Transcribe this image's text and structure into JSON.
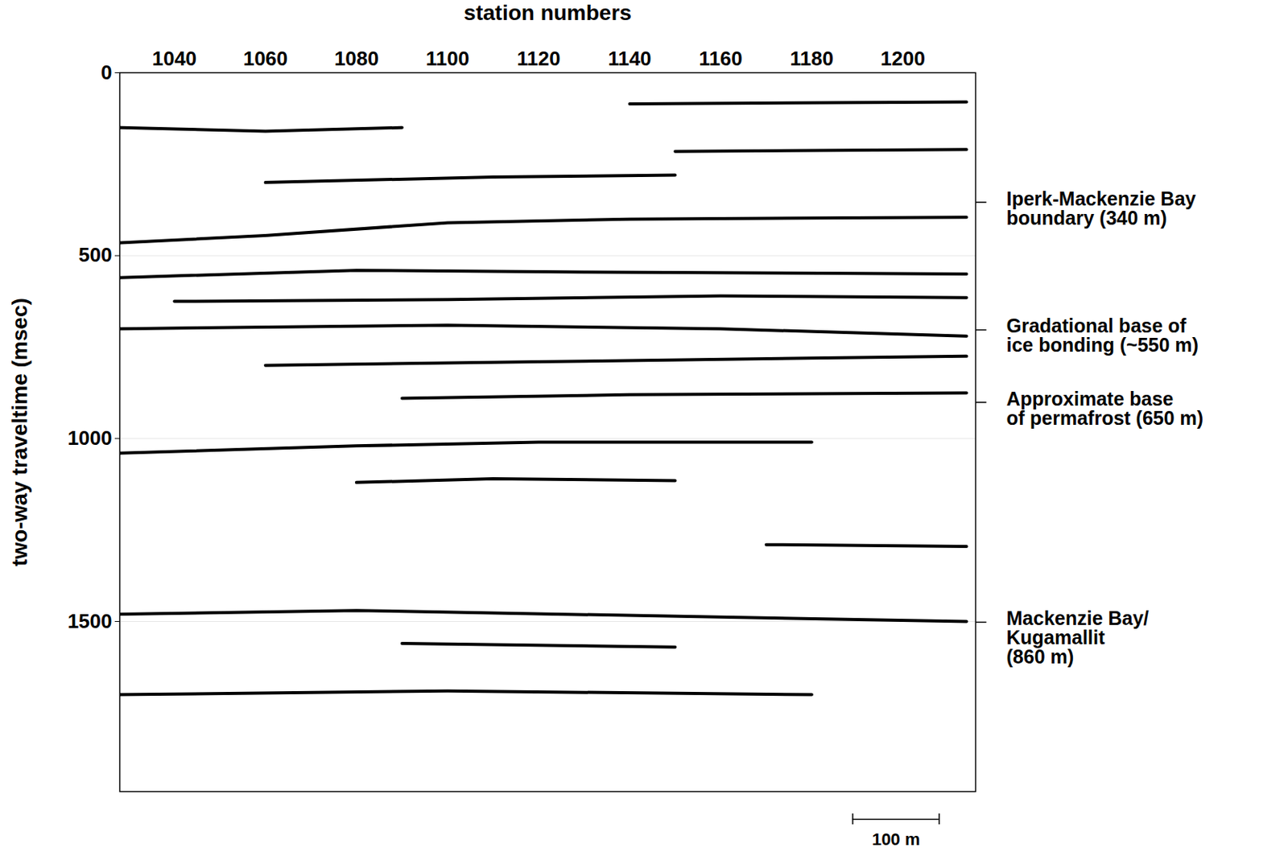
{
  "chart_data": {
    "type": "seismic_section",
    "xlabel": "station numbers",
    "ylabel": "two-way traveltime (msec)",
    "xlim": [
      1028,
      1216
    ],
    "xticks": [
      1040,
      1060,
      1080,
      1100,
      1120,
      1140,
      1160,
      1180,
      1200
    ],
    "ylim": [
      1965,
      0
    ],
    "yticks": [
      0,
      500,
      1000,
      1500
    ],
    "grid": true,
    "color": "#000000",
    "reflectors": [
      {
        "x": [
          1140,
          1214
        ],
        "y": [
          85,
          80
        ]
      },
      {
        "x": [
          1028,
          1060,
          1090
        ],
        "y": [
          150,
          160,
          150
        ]
      },
      {
        "x": [
          1150,
          1214
        ],
        "y": [
          215,
          210
        ]
      },
      {
        "x": [
          1060,
          1110,
          1150
        ],
        "y": [
          300,
          285,
          280
        ]
      },
      {
        "x": [
          1028,
          1060,
          1100,
          1140,
          1214
        ],
        "y": [
          465,
          445,
          410,
          400,
          395
        ]
      },
      {
        "x": [
          1028,
          1080,
          1130,
          1214
        ],
        "y": [
          560,
          540,
          545,
          550
        ]
      },
      {
        "x": [
          1040,
          1100,
          1160,
          1214
        ],
        "y": [
          625,
          620,
          610,
          615
        ]
      },
      {
        "x": [
          1028,
          1100,
          1160,
          1214
        ],
        "y": [
          700,
          690,
          700,
          720
        ]
      },
      {
        "x": [
          1060,
          1120,
          1180,
          1214
        ],
        "y": [
          800,
          790,
          780,
          775
        ]
      },
      {
        "x": [
          1090,
          1140,
          1214
        ],
        "y": [
          890,
          880,
          875
        ]
      },
      {
        "x": [
          1028,
          1080,
          1120,
          1180
        ],
        "y": [
          1040,
          1020,
          1010,
          1010
        ]
      },
      {
        "x": [
          1080,
          1110,
          1150
        ],
        "y": [
          1120,
          1110,
          1115
        ]
      },
      {
        "x": [
          1170,
          1214
        ],
        "y": [
          1290,
          1295
        ]
      },
      {
        "x": [
          1028,
          1080,
          1214
        ],
        "y": [
          1480,
          1470,
          1500
        ]
      },
      {
        "x": [
          1090,
          1150
        ],
        "y": [
          1560,
          1570
        ]
      },
      {
        "x": [
          1028,
          1100,
          1180
        ],
        "y": [
          1700,
          1690,
          1700
        ]
      }
    ],
    "annotations": [
      {
        "text": "Iperk-Mackenzie Bay\nboundary (340 m)",
        "y": 354
      },
      {
        "text": "Gradational base of\nice bonding (~550 m)",
        "y": 703
      },
      {
        "text": "Approximate base\nof permafrost (650 m)",
        "y": 901
      },
      {
        "text": "Mackenzie Bay/\nKugamallit\n(860 m)",
        "y": 1502
      }
    ],
    "scale_bar": {
      "label": "100 m",
      "from": 1189,
      "to": 1208
    }
  }
}
